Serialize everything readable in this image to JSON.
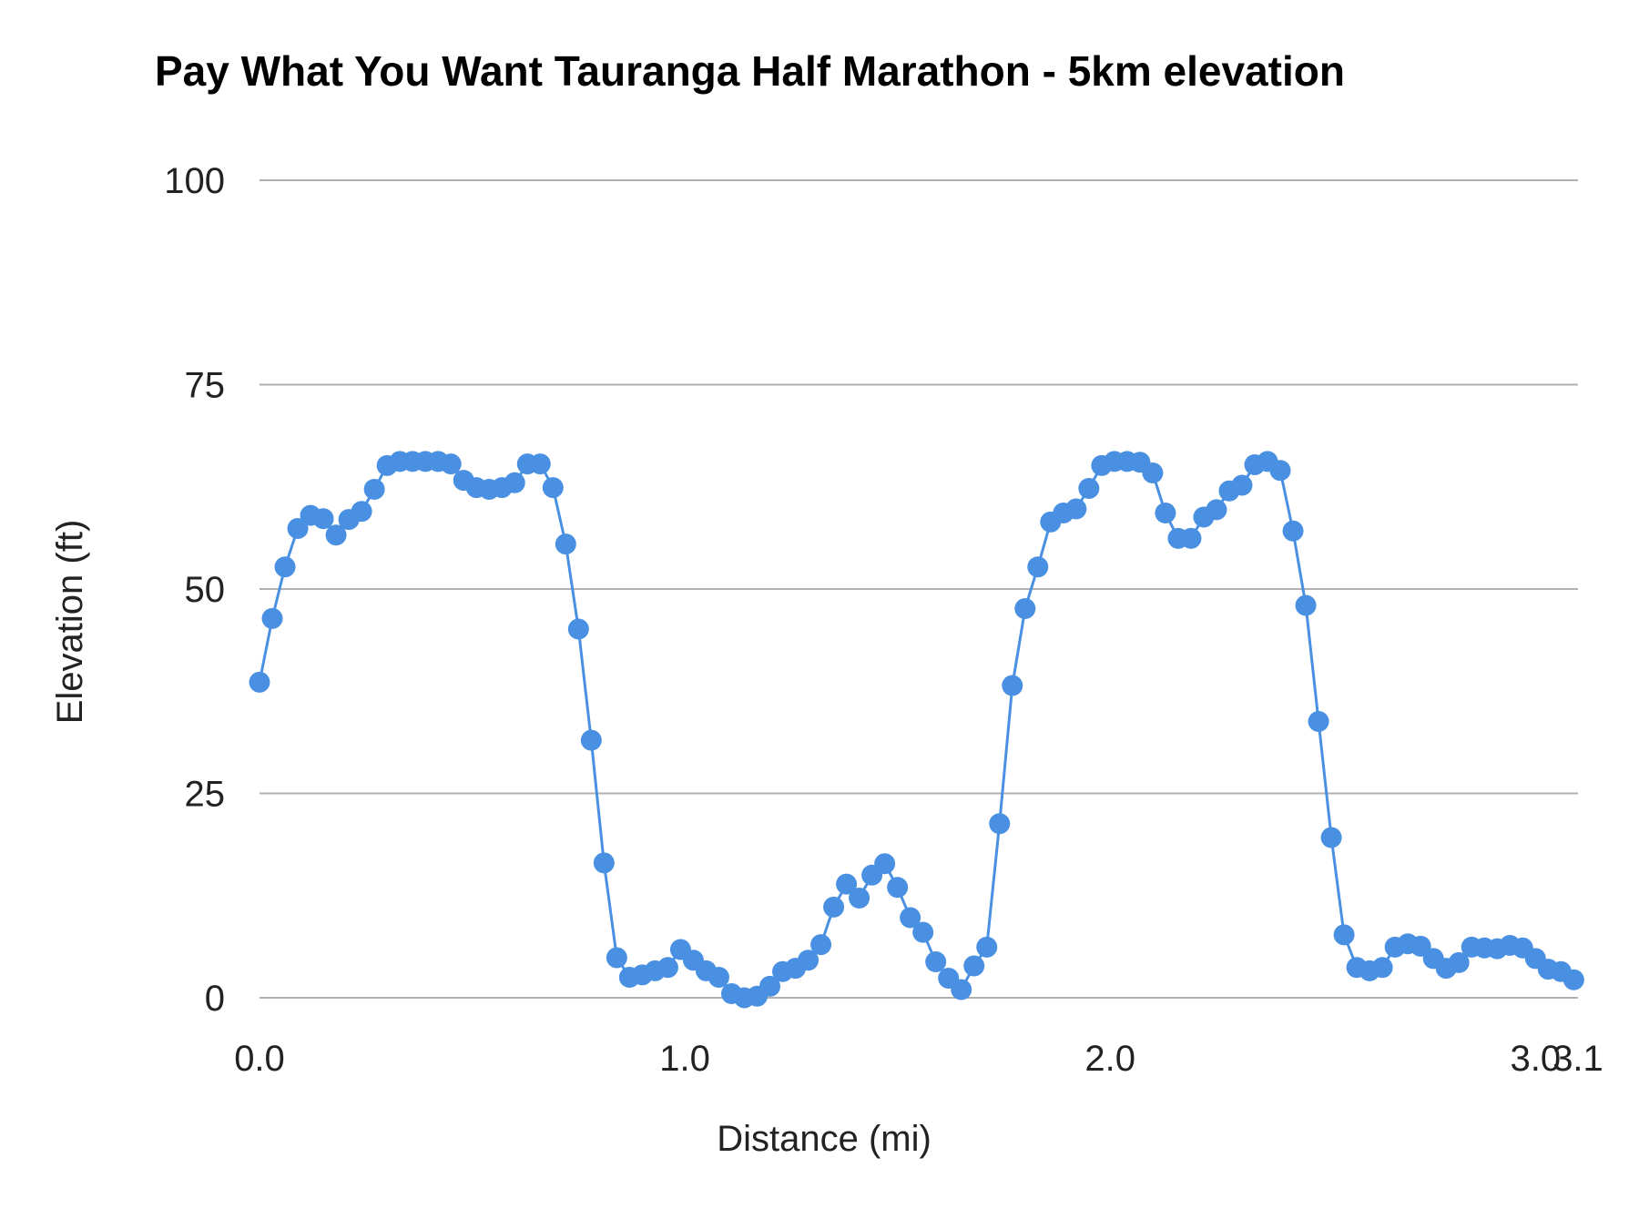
{
  "chart_data": {
    "type": "line",
    "title": "Pay What You Want Tauranga Half Marathon - 5km elevation",
    "xlabel": "Distance (mi)",
    "ylabel": "Elevation (ft)",
    "xlim": [
      0,
      3.1
    ],
    "ylim": [
      0,
      100
    ],
    "x_ticks": [
      "0.0",
      "1.0",
      "2.0",
      "3.0",
      "3.1"
    ],
    "x_tick_values": [
      0,
      1,
      2,
      3,
      3.1
    ],
    "y_ticks": [
      "0",
      "25",
      "50",
      "75",
      "100"
    ],
    "y_tick_values": [
      0,
      25,
      50,
      75,
      100
    ],
    "grid": "horizontal",
    "markers": true,
    "color": "#4a90e2",
    "series": [
      {
        "x": [
          0.0,
          0.03,
          0.06,
          0.09,
          0.12,
          0.15,
          0.18,
          0.21,
          0.24,
          0.27,
          0.3,
          0.33,
          0.36,
          0.39,
          0.42,
          0.45,
          0.48,
          0.51,
          0.54,
          0.57,
          0.6,
          0.63,
          0.66,
          0.69,
          0.72,
          0.75,
          0.78,
          0.81,
          0.84,
          0.87,
          0.9,
          0.93,
          0.96,
          0.99,
          1.02,
          1.05,
          1.08,
          1.11,
          1.14,
          1.17,
          1.2,
          1.23,
          1.26,
          1.29,
          1.32,
          1.35,
          1.38,
          1.41,
          1.44,
          1.47,
          1.5,
          1.53,
          1.56,
          1.59,
          1.62,
          1.65,
          1.68,
          1.71,
          1.74,
          1.77,
          1.8,
          1.83,
          1.86,
          1.89,
          1.92,
          1.95,
          1.98,
          2.01,
          2.04,
          2.07,
          2.1,
          2.13,
          2.16,
          2.19,
          2.22,
          2.25,
          2.28,
          2.31,
          2.34,
          2.37,
          2.4,
          2.43,
          2.46,
          2.49,
          2.52,
          2.55,
          2.58,
          2.61,
          2.64,
          2.67,
          2.7,
          2.73,
          2.76,
          2.79,
          2.82,
          2.85,
          2.88,
          2.91,
          2.94,
          2.97,
          3.0,
          3.03,
          3.06,
          3.09
        ],
        "y": [
          38.6,
          46.4,
          52.7,
          57.4,
          59.0,
          58.6,
          56.6,
          58.5,
          59.5,
          62.2,
          65.1,
          65.6,
          65.6,
          65.6,
          65.6,
          65.3,
          63.3,
          62.4,
          62.2,
          62.4,
          63.0,
          65.3,
          65.3,
          62.4,
          55.5,
          45.1,
          31.5,
          16.5,
          4.9,
          2.5,
          2.8,
          3.3,
          3.7,
          5.9,
          4.6,
          3.3,
          2.5,
          0.5,
          0.0,
          0.2,
          1.4,
          3.2,
          3.6,
          4.6,
          6.5,
          11.1,
          13.9,
          12.2,
          15.0,
          16.4,
          13.5,
          9.8,
          8.0,
          4.4,
          2.4,
          1.0,
          3.9,
          6.2,
          21.3,
          38.2,
          47.6,
          52.7,
          58.2,
          59.3,
          59.8,
          62.3,
          65.1,
          65.6,
          65.6,
          65.5,
          64.2,
          59.3,
          56.2,
          56.2,
          58.8,
          59.7,
          62.0,
          62.7,
          65.2,
          65.6,
          64.5,
          57.1,
          48.0,
          33.8,
          19.6,
          7.7,
          3.7,
          3.3,
          3.7,
          6.2,
          6.6,
          6.3,
          4.8,
          3.6,
          4.3,
          6.2,
          6.1,
          6.0,
          6.4,
          6.1,
          4.8,
          3.5,
          3.2,
          2.2
        ]
      }
    ]
  }
}
